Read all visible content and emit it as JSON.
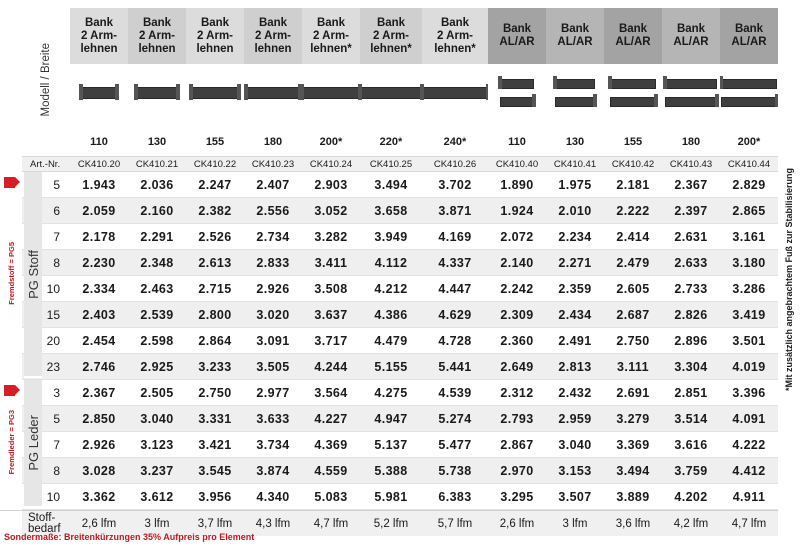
{
  "header": {
    "model_width_label": "Modell / Breite",
    "art_nr_label": "Art.-Nr."
  },
  "columns": [
    {
      "name": "Bank\n2 Arm-\nlehnen",
      "width": "110",
      "art": "CK410.20",
      "type": "arm"
    },
    {
      "name": "Bank\n2 Arm-\nlehnen",
      "width": "130",
      "art": "CK410.21",
      "type": "arm"
    },
    {
      "name": "Bank\n2 Arm-\nlehnen",
      "width": "155",
      "art": "CK410.22",
      "type": "arm"
    },
    {
      "name": "Bank\n2 Arm-\nlehnen",
      "width": "180",
      "art": "CK410.23",
      "type": "arm"
    },
    {
      "name": "Bank\n2 Arm-\nlehnen*",
      "width": "200*",
      "art": "CK410.24",
      "type": "arm"
    },
    {
      "name": "Bank\n2 Arm-\nlehnen*",
      "width": "220*",
      "art": "CK410.25",
      "type": "arm"
    },
    {
      "name": "Bank\n2 Arm-\nlehnen*",
      "width": "240*",
      "art": "CK410.26",
      "type": "arm"
    },
    {
      "name": "Bank\nAL/AR",
      "width": "110",
      "art": "CK410.40",
      "type": "alar"
    },
    {
      "name": "Bank\nAL/AR",
      "width": "130",
      "art": "CK410.41",
      "type": "alar"
    },
    {
      "name": "Bank\nAL/AR",
      "width": "155",
      "art": "CK410.42",
      "type": "alar"
    },
    {
      "name": "Bank\nAL/AR",
      "width": "180",
      "art": "CK410.43",
      "type": "alar"
    },
    {
      "name": "Bank\nAL/AR",
      "width": "200*",
      "art": "CK410.44",
      "type": "alar"
    }
  ],
  "groups": [
    {
      "label": "PG Stoff",
      "side_label": "Fremdstoff = PG5",
      "rows": [
        {
          "pg": "5",
          "values": [
            "1.943",
            "2.036",
            "2.247",
            "2.407",
            "2.903",
            "3.494",
            "3.702",
            "1.890",
            "1.975",
            "2.181",
            "2.367",
            "2.829"
          ]
        },
        {
          "pg": "6",
          "values": [
            "2.059",
            "2.160",
            "2.382",
            "2.556",
            "3.052",
            "3.658",
            "3.871",
            "1.924",
            "2.010",
            "2.222",
            "2.397",
            "2.865"
          ]
        },
        {
          "pg": "7",
          "values": [
            "2.178",
            "2.291",
            "2.526",
            "2.734",
            "3.282",
            "3.949",
            "4.169",
            "2.072",
            "2.234",
            "2.414",
            "2.631",
            "3.161"
          ]
        },
        {
          "pg": "8",
          "values": [
            "2.230",
            "2.348",
            "2.613",
            "2.833",
            "3.411",
            "4.112",
            "4.337",
            "2.140",
            "2.271",
            "2.479",
            "2.633",
            "3.180"
          ]
        },
        {
          "pg": "10",
          "values": [
            "2.334",
            "2.463",
            "2.715",
            "2.926",
            "3.508",
            "4.212",
            "4.447",
            "2.242",
            "2.359",
            "2.605",
            "2.733",
            "3.286"
          ]
        },
        {
          "pg": "15",
          "values": [
            "2.403",
            "2.539",
            "2.800",
            "3.020",
            "3.637",
            "4.386",
            "4.629",
            "2.309",
            "2.434",
            "2.687",
            "2.826",
            "3.419"
          ]
        },
        {
          "pg": "20",
          "values": [
            "2.454",
            "2.598",
            "2.864",
            "3.091",
            "3.717",
            "4.479",
            "4.728",
            "2.360",
            "2.491",
            "2.750",
            "2.896",
            "3.501"
          ]
        },
        {
          "pg": "23",
          "values": [
            "2.746",
            "2.925",
            "3.233",
            "3.505",
            "4.244",
            "5.155",
            "5.441",
            "2.649",
            "2.813",
            "3.111",
            "3.304",
            "4.019"
          ]
        }
      ]
    },
    {
      "label": "PG Leder",
      "side_label": "Fremdleder = PG3",
      "rows": [
        {
          "pg": "3",
          "values": [
            "2.367",
            "2.505",
            "2.750",
            "2.977",
            "3.564",
            "4.275",
            "4.539",
            "2.312",
            "2.432",
            "2.691",
            "2.851",
            "3.396"
          ]
        },
        {
          "pg": "5",
          "values": [
            "2.850",
            "3.040",
            "3.331",
            "3.633",
            "4.227",
            "4.947",
            "5.274",
            "2.793",
            "2.959",
            "3.279",
            "3.514",
            "4.091"
          ]
        },
        {
          "pg": "7",
          "values": [
            "2.926",
            "3.123",
            "3.421",
            "3.734",
            "4.369",
            "5.137",
            "5.477",
            "2.867",
            "3.040",
            "3.369",
            "3.616",
            "4.222"
          ]
        },
        {
          "pg": "8",
          "values": [
            "3.028",
            "3.237",
            "3.545",
            "3.874",
            "4.559",
            "5.388",
            "5.738",
            "2.970",
            "3.153",
            "3.494",
            "3.759",
            "4.412"
          ]
        },
        {
          "pg": "10",
          "values": [
            "3.362",
            "3.612",
            "3.956",
            "4.340",
            "5.083",
            "5.981",
            "6.383",
            "3.295",
            "3.507",
            "3.889",
            "4.202",
            "4.911"
          ]
        }
      ]
    }
  ],
  "stoffbedarf": {
    "label": "Stoff-\nbedarf",
    "values": [
      "2,6 lfm",
      "3 lfm",
      "3,7 lfm",
      "4,3 lfm",
      "4,7 lfm",
      "5,2 lfm",
      "5,7 lfm",
      "2,6 lfm",
      "3 lfm",
      "3,6 lfm",
      "4,2 lfm",
      "4,7 lfm"
    ]
  },
  "notes": {
    "bottom": "Sondermaße: Breitenkürzungen 35% Aufpreis pro Element",
    "right": "*Mit zusätzlich angebrachtem Fuß zur Stabilisierung"
  },
  "colors": {
    "accent_red": "#d81e25",
    "header_dark": "#a3a3a3",
    "header_light": "#dcdcdc"
  }
}
